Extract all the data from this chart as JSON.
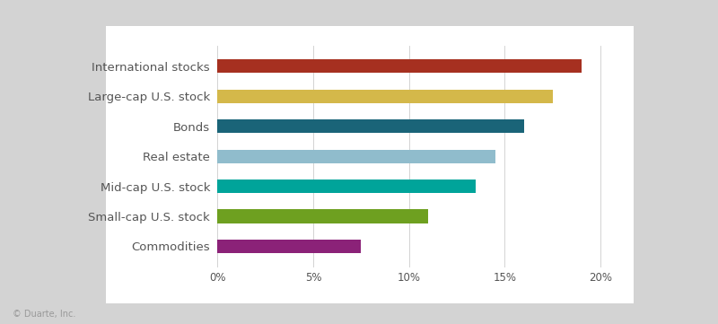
{
  "categories": [
    "Commodities",
    "Small-cap U.S. stock",
    "Mid-cap U.S. stock",
    "Real estate",
    "Bonds",
    "Large-cap U.S. stock",
    "International stocks"
  ],
  "values": [
    7.5,
    11.0,
    13.5,
    14.5,
    16.0,
    17.5,
    19.0
  ],
  "bar_colors": [
    "#8B2278",
    "#6EA020",
    "#00A49A",
    "#90BCCC",
    "#1A6478",
    "#D4B84A",
    "#A63020"
  ],
  "xlim": [
    0,
    21
  ],
  "xticks": [
    0,
    5,
    10,
    15,
    20
  ],
  "xtick_labels": [
    "0%",
    "5%",
    "10%",
    "15%",
    "20%"
  ],
  "background_outer": "#D3D3D3",
  "background_card": "#FFFFFF",
  "copyright_text": "© Duarte, Inc.",
  "bar_height": 0.45,
  "label_fontsize": 9.5,
  "tick_fontsize": 8.5
}
